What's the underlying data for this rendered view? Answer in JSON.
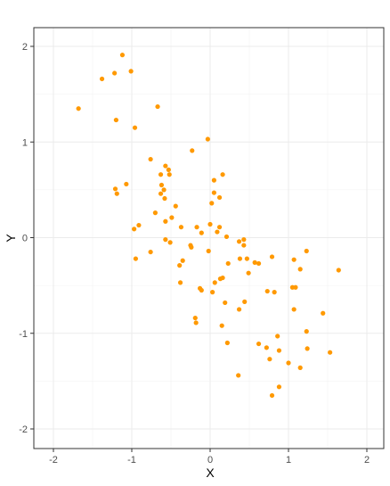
{
  "chart_data": {
    "type": "scatter",
    "title": "",
    "xlabel": "X",
    "ylabel": "Y",
    "xlim": [
      -2.0,
      2.0
    ],
    "ylim": [
      -2.0,
      2.0
    ],
    "x_ticks": [
      -2,
      -1,
      0,
      1,
      2
    ],
    "y_ticks": [
      -2,
      -1,
      0,
      1,
      2
    ],
    "x_tick_labels": [
      "-2",
      "-1",
      "0",
      "1",
      "2"
    ],
    "y_tick_labels": [
      "-2",
      "-1",
      "0",
      "1",
      "2"
    ],
    "grid": true,
    "point_color": "#ff9900",
    "points": [
      {
        "x": -1.68,
        "y": 1.35
      },
      {
        "x": -1.38,
        "y": 1.66
      },
      {
        "x": -1.22,
        "y": 1.72
      },
      {
        "x": -1.12,
        "y": 1.91
      },
      {
        "x": -1.01,
        "y": 1.74
      },
      {
        "x": -0.67,
        "y": 1.37
      },
      {
        "x": -1.2,
        "y": 1.23
      },
      {
        "x": -0.96,
        "y": 1.15
      },
      {
        "x": -0.76,
        "y": 0.82
      },
      {
        "x": -0.57,
        "y": 0.75
      },
      {
        "x": -0.53,
        "y": 0.71
      },
      {
        "x": -0.63,
        "y": 0.66
      },
      {
        "x": -0.52,
        "y": 0.66
      },
      {
        "x": -0.23,
        "y": 0.91
      },
      {
        "x": -0.03,
        "y": 1.03
      },
      {
        "x": 0.16,
        "y": 0.66
      },
      {
        "x": -1.07,
        "y": 0.56
      },
      {
        "x": -1.21,
        "y": 0.51
      },
      {
        "x": -1.19,
        "y": 0.46
      },
      {
        "x": -0.62,
        "y": 0.55
      },
      {
        "x": -0.59,
        "y": 0.5
      },
      {
        "x": -0.63,
        "y": 0.46
      },
      {
        "x": -0.58,
        "y": 0.41
      },
      {
        "x": 0.05,
        "y": 0.6
      },
      {
        "x": 0.05,
        "y": 0.47
      },
      {
        "x": 0.12,
        "y": 0.42
      },
      {
        "x": -0.44,
        "y": 0.33
      },
      {
        "x": 0.02,
        "y": 0.36
      },
      {
        "x": -0.7,
        "y": 0.26
      },
      {
        "x": -0.57,
        "y": 0.17
      },
      {
        "x": -0.49,
        "y": 0.21
      },
      {
        "x": -0.37,
        "y": 0.11
      },
      {
        "x": -0.91,
        "y": 0.13
      },
      {
        "x": -0.97,
        "y": 0.09
      },
      {
        "x": -0.17,
        "y": 0.11
      },
      {
        "x": -0.11,
        "y": 0.05
      },
      {
        "x": 0.0,
        "y": 0.14
      },
      {
        "x": 0.09,
        "y": 0.06
      },
      {
        "x": 0.12,
        "y": 0.11
      },
      {
        "x": 0.21,
        "y": 0.01
      },
      {
        "x": 0.37,
        "y": -0.04
      },
      {
        "x": 0.43,
        "y": -0.02
      },
      {
        "x": 0.43,
        "y": -0.08
      },
      {
        "x": -0.57,
        "y": -0.02
      },
      {
        "x": -0.51,
        "y": -0.05
      },
      {
        "x": -0.25,
        "y": -0.08
      },
      {
        "x": -0.24,
        "y": -0.1
      },
      {
        "x": -0.02,
        "y": -0.14
      },
      {
        "x": -0.76,
        "y": -0.15
      },
      {
        "x": -0.95,
        "y": -0.22
      },
      {
        "x": -0.35,
        "y": -0.24
      },
      {
        "x": -0.39,
        "y": -0.29
      },
      {
        "x": 0.23,
        "y": -0.27
      },
      {
        "x": 0.38,
        "y": -0.22
      },
      {
        "x": 0.47,
        "y": -0.22
      },
      {
        "x": 0.57,
        "y": -0.26
      },
      {
        "x": 0.62,
        "y": -0.27
      },
      {
        "x": 0.79,
        "y": -0.2
      },
      {
        "x": 1.07,
        "y": -0.23
      },
      {
        "x": 1.15,
        "y": -0.33
      },
      {
        "x": 1.23,
        "y": -0.14
      },
      {
        "x": 1.64,
        "y": -0.34
      },
      {
        "x": -0.38,
        "y": -0.47
      },
      {
        "x": 0.06,
        "y": -0.47
      },
      {
        "x": 0.13,
        "y": -0.43
      },
      {
        "x": 0.16,
        "y": -0.42
      },
      {
        "x": 0.49,
        "y": -0.37
      },
      {
        "x": -0.13,
        "y": -0.53
      },
      {
        "x": -0.11,
        "y": -0.55
      },
      {
        "x": 0.03,
        "y": -0.57
      },
      {
        "x": 0.73,
        "y": -0.56
      },
      {
        "x": 0.82,
        "y": -0.57
      },
      {
        "x": 1.05,
        "y": -0.52
      },
      {
        "x": 1.09,
        "y": -0.52
      },
      {
        "x": 0.19,
        "y": -0.68
      },
      {
        "x": 0.44,
        "y": -0.67
      },
      {
        "x": 0.37,
        "y": -0.75
      },
      {
        "x": 1.07,
        "y": -0.75
      },
      {
        "x": 1.44,
        "y": -0.79
      },
      {
        "x": -0.19,
        "y": -0.84
      },
      {
        "x": -0.18,
        "y": -0.89
      },
      {
        "x": 0.15,
        "y": -0.92
      },
      {
        "x": 1.23,
        "y": -0.98
      },
      {
        "x": 0.86,
        "y": -1.03
      },
      {
        "x": 0.22,
        "y": -1.1
      },
      {
        "x": 0.62,
        "y": -1.11
      },
      {
        "x": 0.72,
        "y": -1.15
      },
      {
        "x": 0.88,
        "y": -1.18
      },
      {
        "x": 1.24,
        "y": -1.16
      },
      {
        "x": 1.53,
        "y": -1.2
      },
      {
        "x": 0.76,
        "y": -1.27
      },
      {
        "x": 1.0,
        "y": -1.31
      },
      {
        "x": 1.15,
        "y": -1.36
      },
      {
        "x": 0.36,
        "y": -1.44
      },
      {
        "x": 0.88,
        "y": -1.56
      },
      {
        "x": 0.79,
        "y": -1.65
      }
    ]
  }
}
